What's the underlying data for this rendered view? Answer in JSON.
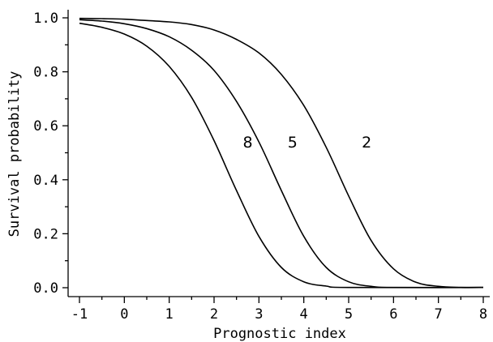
{
  "chart_data": {
    "type": "line",
    "title": "",
    "xlabel": "Prognostic index",
    "ylabel": "Survival probability",
    "xlim": [
      -1,
      8
    ],
    "ylim": [
      0,
      1
    ],
    "grid": false,
    "legend": "none",
    "x_ticks": [
      "-1",
      "0",
      "1",
      "2",
      "3",
      "4",
      "5",
      "6",
      "7",
      "8"
    ],
    "y_ticks": [
      "0.0",
      "0.2",
      "0.4",
      "0.6",
      "0.8",
      "1.0"
    ],
    "series": [
      {
        "name": "8",
        "x": [
          -1,
          -0.5,
          0,
          0.5,
          1,
          1.5,
          2,
          2.5,
          3,
          3.5,
          4,
          4.5,
          5
        ],
        "y": [
          0.98,
          0.965,
          0.94,
          0.895,
          0.82,
          0.705,
          0.545,
          0.36,
          0.19,
          0.075,
          0.022,
          0.006,
          0.001
        ],
        "label_at": [
          2.75,
          0.52
        ]
      },
      {
        "name": "5",
        "x": [
          -1,
          -0.5,
          0,
          0.5,
          1,
          1.5,
          2,
          2.5,
          3,
          3.5,
          4,
          4.5,
          5,
          5.5,
          6
        ],
        "y": [
          0.993,
          0.988,
          0.978,
          0.96,
          0.93,
          0.88,
          0.805,
          0.69,
          0.54,
          0.36,
          0.19,
          0.075,
          0.022,
          0.005,
          0.001
        ],
        "label_at": [
          3.75,
          0.52
        ]
      },
      {
        "name": "2",
        "x": [
          -1,
          -0.5,
          0,
          0.5,
          1,
          1.5,
          2,
          2.5,
          3,
          3.5,
          4,
          4.5,
          5,
          5.5,
          6,
          6.5,
          7,
          7.5
        ],
        "y": [
          0.998,
          0.997,
          0.995,
          0.99,
          0.985,
          0.975,
          0.955,
          0.92,
          0.87,
          0.79,
          0.675,
          0.52,
          0.34,
          0.175,
          0.07,
          0.02,
          0.005,
          0.001
        ],
        "label_at": [
          5.4,
          0.52
        ]
      }
    ]
  }
}
